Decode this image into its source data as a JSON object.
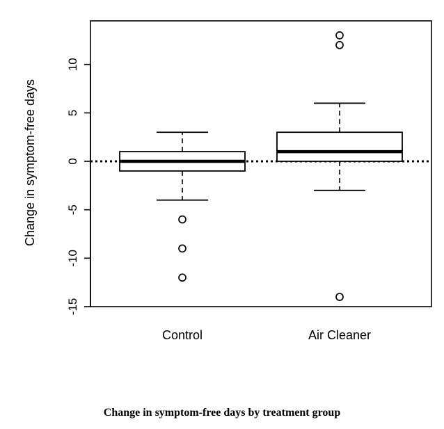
{
  "chart_data": {
    "type": "boxplot",
    "title": "",
    "xlabel": "",
    "ylabel": "Change in symptom-free days",
    "ylim": [
      -15,
      14.5
    ],
    "yticks": [
      -15,
      -10,
      -5,
      0,
      5,
      10
    ],
    "reference_line": {
      "y": 0,
      "style": "dotted"
    },
    "grid": false,
    "categories": [
      "Control",
      "Air Cleaner"
    ],
    "boxes": [
      {
        "name": "Control",
        "whisker_low": -4,
        "q1": -1,
        "median": 0,
        "q3": 1,
        "whisker_high": 3,
        "outliers": [
          -6,
          -9,
          -12
        ]
      },
      {
        "name": "Air Cleaner",
        "whisker_low": -3,
        "q1": 0,
        "median": 1,
        "q3": 3,
        "whisker_high": 6,
        "outliers": [
          13,
          12,
          -14
        ]
      }
    ]
  },
  "caption": "Change in symptom-free days by treatment group"
}
